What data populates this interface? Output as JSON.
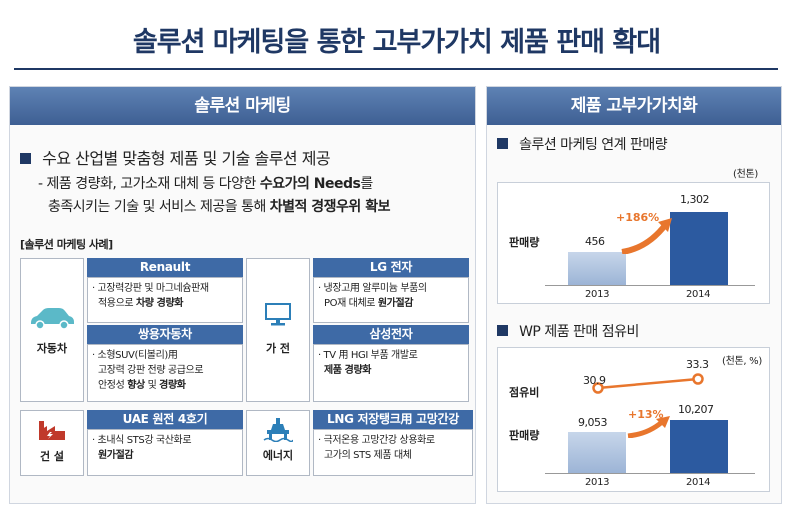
{
  "title": "솔루션 마케팅을 통한 고부가가치 제품 판매 확대",
  "left": {
    "header": "솔루션 마케팅",
    "bullet": "수요 산업별 맞춤형 제품 및 기술 솔루션 제공",
    "desc_line1_pre": "- 제품 경량화, 고가소재 대체 등 다양한 ",
    "desc_line1_bold": "수요가의 Needs",
    "desc_line1_post": "를",
    "desc_line2_pre": "충족시키는 기술 및 서비스 제공을 통해 ",
    "desc_line2_bold": "차별적 경쟁우위 확보",
    "cases_label": "[솔루션 마케팅 사례]",
    "cards": [
      {
        "category": "자동차",
        "items": [
          {
            "head": "Renault",
            "line1": "· 고장력강판 및 마그네슘판재",
            "line2_pre": "적용으로 ",
            "line2_bold": "차량 경량화"
          },
          {
            "head": "쌍용자동차",
            "line1": "· 소형SUV(티볼리)用",
            "line2_pre": "고장력 강판 전량 공급으로",
            "line3_pre": "안정성 ",
            "line3_bold1": "향상",
            "line3_mid": " 및 ",
            "line3_bold2": "경량화"
          }
        ]
      },
      {
        "category": "가 전",
        "items": [
          {
            "head": "LG 전자",
            "line1": "· 냉장고用 알루미늄 부품의",
            "line2_pre": "PO재 대체로 ",
            "line2_bold": "원가절감"
          },
          {
            "head": "삼성전자",
            "line1": "· TV 用 HGI 부품 개발로",
            "line2_bold": "제품 경량화"
          }
        ]
      },
      {
        "category": "건 설",
        "items": [
          {
            "head": "UAE 원전 4호기",
            "line1": "· 초내식 STS강 국산화로",
            "line2_bold": "원가절감"
          }
        ]
      },
      {
        "category": "에너지",
        "items": [
          {
            "head": "LNG 저장탱크用 고망간강",
            "line1": "· 극저온용 고망간강 상용화로",
            "line2_pre": "고가의 STS 제품 대체"
          }
        ]
      }
    ]
  },
  "right": {
    "header": "제품 고부가가치화",
    "chart1": {
      "title": "솔루션 마케팅 연계 판매량",
      "unit": "(천톤)",
      "row_label": "판매량",
      "growth": "+186%"
    },
    "chart2": {
      "title": "WP 제품 판매 점유비",
      "unit": "(천톤, %)",
      "share_label": "점유비",
      "qty_label": "판매량",
      "growth": "+13%"
    }
  },
  "chart_data": [
    {
      "type": "bar",
      "categories": [
        "2013",
        "2014"
      ],
      "values": [
        456,
        1302
      ],
      "value_labels": [
        "456",
        "1,302"
      ],
      "title": "솔루션 마케팅 연계 판매량"
    },
    {
      "type": "bar",
      "categories": [
        "2013",
        "2014"
      ],
      "values": [
        9053,
        10207
      ],
      "value_labels": [
        "9,053",
        "10,207"
      ],
      "share": [
        30.9,
        33.3
      ],
      "title": "WP 제품 판매 점유비"
    }
  ],
  "colors": {
    "navy": "#1f3864",
    "accent": "#e8762d",
    "bar_dark": "#2c5aa0",
    "bar_light": "#9cb4d6"
  },
  "icons": [
    "car-icon",
    "monitor-icon",
    "factory-icon",
    "oil-rig-icon"
  ]
}
